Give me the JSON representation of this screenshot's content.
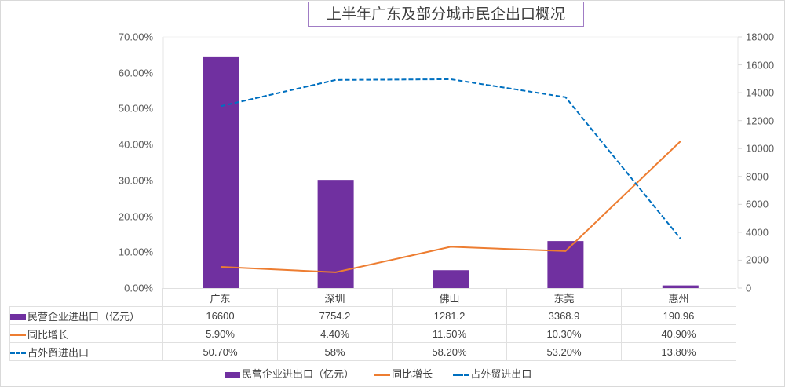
{
  "title": "上半年广东及部分城市民企出口概况",
  "left_axis": {
    "ticks": [
      "70.00%",
      "60.00%",
      "50.00%",
      "40.00%",
      "30.00%",
      "20.00%",
      "10.00%",
      "0.00%"
    ]
  },
  "right_axis": {
    "ticks": [
      "18000",
      "16000",
      "14000",
      "12000",
      "10000",
      "8000",
      "6000",
      "4000",
      "2000",
      "0"
    ]
  },
  "table": {
    "categories": [
      "广东",
      "深圳",
      "佛山",
      "东莞",
      "惠州"
    ],
    "rows": [
      {
        "label": "民营企业进出口（亿元）",
        "values": [
          "16600",
          "7754.2",
          "1281.2",
          "3368.9",
          "190.96"
        ]
      },
      {
        "label": "同比增长",
        "values": [
          "5.90%",
          "4.40%",
          "11.50%",
          "10.30%",
          "40.90%"
        ]
      },
      {
        "label": "占外贸进出口",
        "values": [
          "50.70%",
          "58%",
          "58.20%",
          "53.20%",
          "13.80%"
        ]
      }
    ]
  },
  "legend": {
    "bar": "民营企业进出口（亿元）",
    "line": "同比增长",
    "dash": "占外贸进出口"
  },
  "colors": {
    "bar": "#7030a0",
    "line": "#ed7d31",
    "dash": "#0070c0"
  },
  "chart_data": {
    "type": "bar",
    "title": "上半年广东及部分城市民企出口概况",
    "categories": [
      "广东",
      "深圳",
      "佛山",
      "东莞",
      "惠州"
    ],
    "series": [
      {
        "name": "民营企业进出口（亿元）",
        "type": "bar",
        "axis": "right",
        "values": [
          16600,
          7754.2,
          1281.2,
          3368.9,
          190.96
        ]
      },
      {
        "name": "同比增长",
        "type": "line",
        "axis": "left",
        "values": [
          0.059,
          0.044,
          0.115,
          0.103,
          0.409
        ]
      },
      {
        "name": "占外贸进出口",
        "type": "line",
        "style": "dashed",
        "axis": "left",
        "values": [
          0.507,
          0.58,
          0.582,
          0.532,
          0.138
        ]
      }
    ],
    "ylim_left": [
      0,
      0.7
    ],
    "ylim_right": [
      0,
      18000
    ],
    "xlabel": "",
    "ylabel": "",
    "legend_position": "bottom",
    "data_table": true,
    "grid": false
  }
}
